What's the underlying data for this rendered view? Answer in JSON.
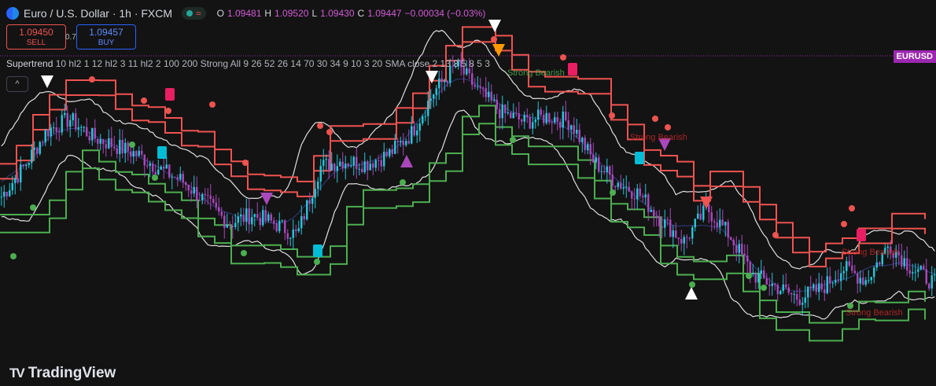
{
  "header": {
    "symbol": "Euro / U.S. Dollar · 1h · FXCM",
    "status_wave": "≈",
    "ohlc": {
      "o_label": "O",
      "o": "1.09481",
      "h_label": "H",
      "h": "1.09520",
      "l_label": "L",
      "l": "1.09430",
      "c_label": "C",
      "c": "1.09447",
      "change": "−0.00034 (−0.03%)"
    }
  },
  "trade": {
    "sell_price": "1.09450",
    "sell_label": "SELL",
    "spread": "0.7",
    "buy_price": "1.09457",
    "buy_label": "BUY"
  },
  "indicator": {
    "name": "Supertrend",
    "params": "10 hl2 1 12 hl2 3 11 hl2 2 100 200 Strong All 9 26 52 26 14 70 30 34 9 10 3 20 SMA close 2 13 8 5 8 5 3"
  },
  "collapse_icon": "chevron-up-icon",
  "price_tag": "EURUSD",
  "logo": {
    "mark": "17",
    "text": "TradingView"
  },
  "annotations": [
    {
      "text": "Strong Bearish",
      "color": "#4caf50"
    },
    {
      "text": "Strong Bearish",
      "color": "#c62828"
    },
    {
      "text": "Strong Bearish",
      "color": "#c62828"
    },
    {
      "text": "Strong Bearish",
      "color": "#c62828"
    }
  ],
  "colors": {
    "background": "#131313",
    "bull_candle": "#26c6da",
    "bear_candle": "#ab47bc",
    "supertrend_up": "#4caf50",
    "supertrend_down": "#ef5350",
    "bands": "#e0e0e0",
    "price_tag": "#9c27b0",
    "buy_signal": "#00bcd4",
    "sell_signal": "#e91e63"
  },
  "chart_data": {
    "type": "line",
    "series": [
      {
        "values": [
          1.0965,
          1.0975,
          1.0987,
          1.0991,
          1.0985,
          1.0982,
          1.0979,
          1.0974,
          1.097,
          1.0963,
          1.0956,
          1.0959,
          1.0956,
          1.0952,
          1.0975,
          1.0977,
          1.0976,
          1.0979,
          1.0986,
          1.1,
          1.1009,
          1.1,
          1.0993,
          1.099,
          1.0992,
          1.099,
          1.0977,
          1.097,
          1.0966,
          1.0957,
          1.095,
          1.0961,
          1.0952,
          1.0939,
          1.0935,
          1.0931,
          1.0934,
          1.0941,
          1.0937,
          1.0949,
          1.0941,
          1.0936
        ]
      }
    ]
  }
}
